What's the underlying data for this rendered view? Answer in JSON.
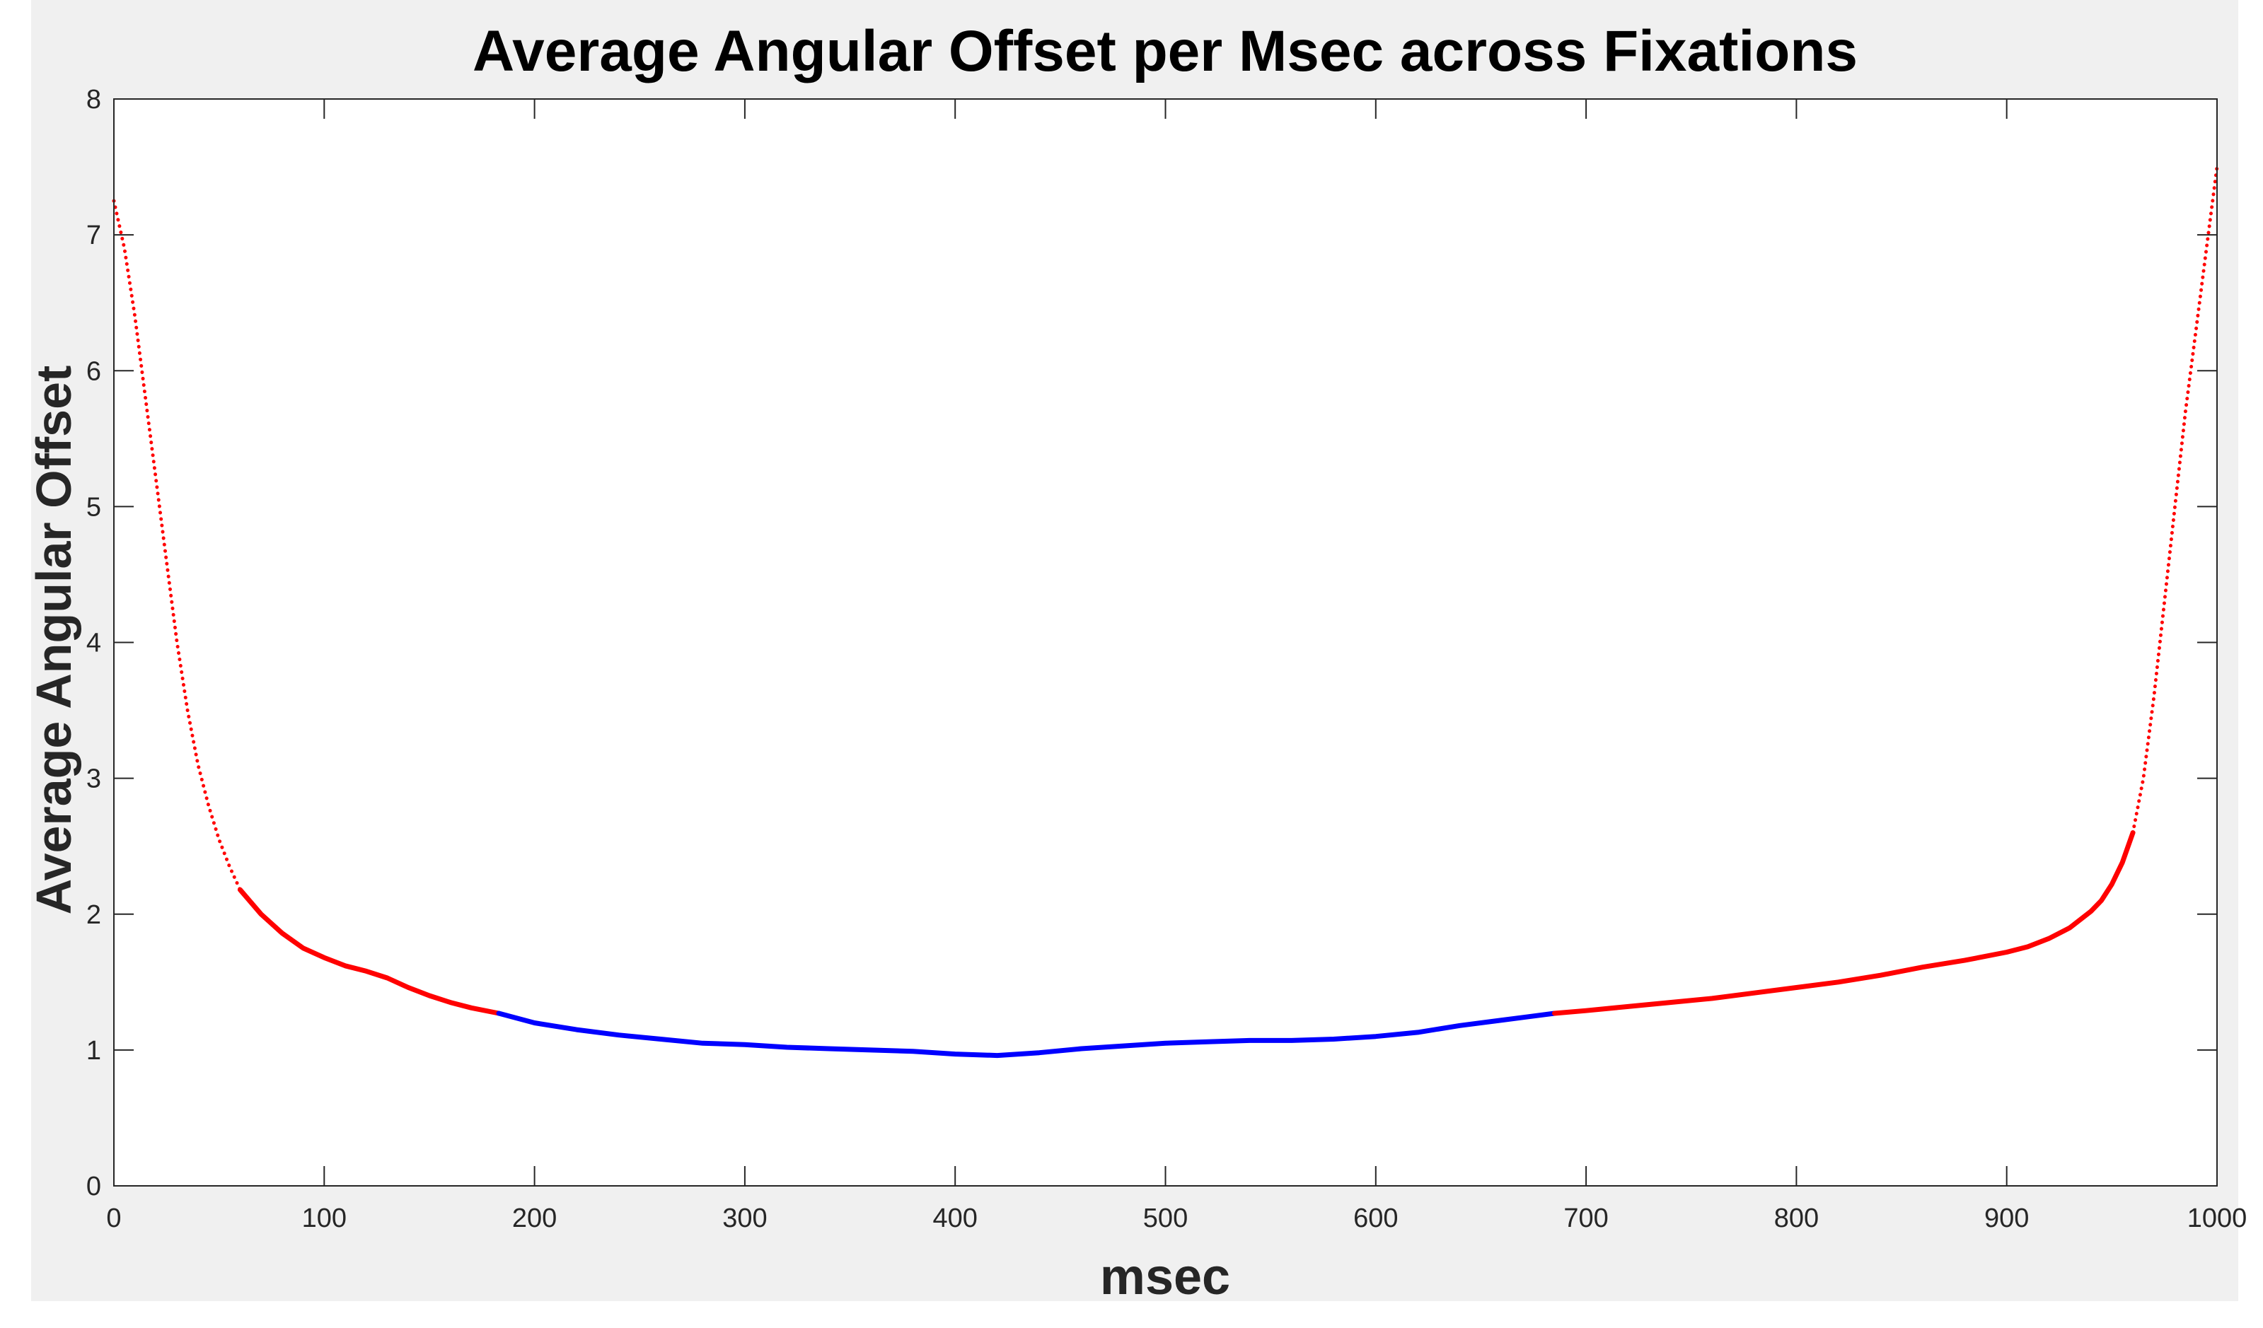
{
  "chart_data": {
    "type": "line",
    "title": "Average Angular Offset per Msec across Fixations",
    "xlabel": "msec",
    "ylabel": "Average Angular Offset",
    "xlim": [
      0,
      1000
    ],
    "ylim": [
      0,
      8
    ],
    "xticks": [
      0,
      100,
      200,
      300,
      400,
      500,
      600,
      700,
      800,
      900,
      1000
    ],
    "yticks": [
      0,
      1,
      2,
      3,
      4,
      5,
      6,
      7,
      8
    ],
    "grid": false,
    "colors": {
      "figure_background": "#f0f0f0",
      "axes_background": "#ffffff",
      "axis": "#262626",
      "series_red": "#ff0000",
      "series_blue": "#0000ff"
    },
    "series": [
      {
        "color": "#ff0000",
        "style": "dotted",
        "x": [
          0,
          5,
          10,
          15,
          20,
          25,
          30,
          35,
          40,
          45,
          50,
          55,
          60
        ],
        "y": [
          7.25,
          6.9,
          6.4,
          5.8,
          5.2,
          4.6,
          4.0,
          3.5,
          3.1,
          2.8,
          2.55,
          2.35,
          2.18
        ]
      },
      {
        "color": "#ff0000",
        "style": "solid",
        "x": [
          60,
          70,
          80,
          90,
          100,
          110,
          120,
          130,
          140,
          150,
          160,
          170,
          183
        ],
        "y": [
          2.18,
          2.0,
          1.86,
          1.75,
          1.68,
          1.62,
          1.58,
          1.53,
          1.46,
          1.4,
          1.35,
          1.31,
          1.27
        ]
      },
      {
        "color": "#0000ff",
        "style": "solid",
        "x": [
          183,
          200,
          220,
          240,
          260,
          280,
          300,
          320,
          340,
          360,
          380,
          400,
          420,
          440,
          460,
          480,
          500,
          520,
          540,
          560,
          580,
          600,
          620,
          640,
          660,
          685
        ],
        "y": [
          1.27,
          1.2,
          1.15,
          1.11,
          1.08,
          1.05,
          1.04,
          1.02,
          1.01,
          1.0,
          0.99,
          0.97,
          0.96,
          0.98,
          1.01,
          1.03,
          1.05,
          1.06,
          1.07,
          1.07,
          1.08,
          1.1,
          1.13,
          1.18,
          1.22,
          1.27
        ]
      },
      {
        "color": "#ff0000",
        "style": "solid",
        "x": [
          685,
          700,
          720,
          740,
          760,
          780,
          800,
          820,
          840,
          860,
          880,
          900,
          910,
          920,
          930,
          940,
          945,
          950,
          955,
          960
        ],
        "y": [
          1.27,
          1.29,
          1.32,
          1.35,
          1.38,
          1.42,
          1.46,
          1.5,
          1.55,
          1.61,
          1.66,
          1.72,
          1.76,
          1.82,
          1.9,
          2.02,
          2.1,
          2.22,
          2.38,
          2.6
        ]
      },
      {
        "color": "#ff0000",
        "style": "dotted",
        "x": [
          960,
          965,
          970,
          975,
          980,
          985,
          990,
          995,
          1000
        ],
        "y": [
          2.6,
          3.0,
          3.6,
          4.3,
          5.0,
          5.7,
          6.3,
          6.9,
          7.5
        ]
      }
    ]
  }
}
